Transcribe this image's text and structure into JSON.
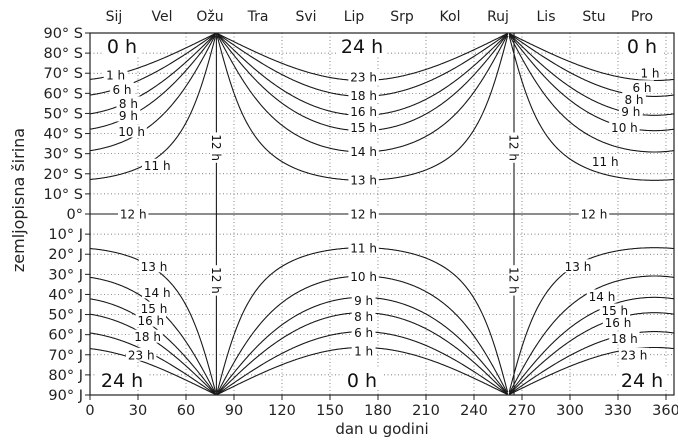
{
  "chart_data": {
    "type": "line",
    "xlabel": "dan u godini",
    "ylabel": "zemljopisna širina",
    "xlim": [
      0,
      365
    ],
    "x_ticks": [
      "0",
      "30",
      "60",
      "90",
      "120",
      "150",
      "180",
      "210",
      "240",
      "270",
      "300",
      "330",
      "360"
    ],
    "x_tick_values": [
      0,
      30,
      60,
      90,
      120,
      150,
      180,
      210,
      240,
      270,
      300,
      330,
      360
    ],
    "ylim": [
      -90,
      90
    ],
    "y_ticks": [
      "90° S",
      "80° S",
      "70° S",
      "60° S",
      "50° S",
      "40° S",
      "30° S",
      "20° S",
      "10° S",
      "0°",
      "10° J",
      "20° J",
      "30° J",
      "40° J",
      "50° J",
      "60° J",
      "70° J",
      "80° J",
      "90° J"
    ],
    "y_tick_values": [
      90,
      80,
      70,
      60,
      50,
      40,
      30,
      20,
      10,
      0,
      -10,
      -20,
      -30,
      -40,
      -50,
      -60,
      -70,
      -80,
      -90
    ],
    "months": [
      "Sij",
      "Vel",
      "Ožu",
      "Tra",
      "Svi",
      "Lip",
      "Srp",
      "Kol",
      "Ruj",
      "Lis",
      "Stu",
      "Pro"
    ],
    "month_centers": [
      15,
      45,
      75,
      105,
      135,
      165,
      195,
      225,
      255,
      285,
      315,
      345
    ],
    "grid": true,
    "equinoxes": [
      79,
      265
    ],
    "series": [
      {
        "name": "1 h"
      },
      {
        "name": "6 h"
      },
      {
        "name": "8 h"
      },
      {
        "name": "9 h"
      },
      {
        "name": "10 h"
      },
      {
        "name": "11 h"
      },
      {
        "name": "12 h"
      },
      {
        "name": "13 h"
      },
      {
        "name": "14 h"
      },
      {
        "name": "15 h"
      },
      {
        "name": "16 h"
      },
      {
        "name": "18 h"
      },
      {
        "name": "23 h"
      }
    ],
    "region_labels": [
      {
        "text": "0 h",
        "x": 20,
        "y": 83
      },
      {
        "text": "24 h",
        "x": 170,
        "y": 83
      },
      {
        "text": "0 h",
        "x": 345,
        "y": 83
      },
      {
        "text": "24 h",
        "x": 20,
        "y": -83
      },
      {
        "text": "0 h",
        "x": 170,
        "y": -83
      },
      {
        "text": "24 h",
        "x": 345,
        "y": -83
      }
    ],
    "contour_labels": [
      {
        "text": "1 h",
        "x": 16,
        "y": 69
      },
      {
        "text": "6 h",
        "x": 20,
        "y": 62
      },
      {
        "text": "8 h",
        "x": 24,
        "y": 55
      },
      {
        "text": "9 h",
        "x": 24,
        "y": 49
      },
      {
        "text": "10 h",
        "x": 26,
        "y": 41
      },
      {
        "text": "11 h",
        "x": 42,
        "y": 24
      },
      {
        "text": "12 h",
        "x": 27,
        "y": 0
      },
      {
        "text": "13 h",
        "x": 40,
        "y": -26
      },
      {
        "text": "14 h",
        "x": 42,
        "y": -39
      },
      {
        "text": "15 h",
        "x": 40,
        "y": -47
      },
      {
        "text": "16 h",
        "x": 38,
        "y": -53
      },
      {
        "text": "18 h",
        "x": 36,
        "y": -61
      },
      {
        "text": "23 h",
        "x": 32,
        "y": -70
      },
      {
        "text": "23 h",
        "x": 171,
        "y": 68
      },
      {
        "text": "18 h",
        "x": 171,
        "y": 59
      },
      {
        "text": "16 h",
        "x": 171,
        "y": 51
      },
      {
        "text": "15 h",
        "x": 171,
        "y": 43
      },
      {
        "text": "14 h",
        "x": 171,
        "y": 31
      },
      {
        "text": "13 h",
        "x": 171,
        "y": 17
      },
      {
        "text": "12 h",
        "x": 171,
        "y": 0
      },
      {
        "text": "11 h",
        "x": 171,
        "y": -17
      },
      {
        "text": "10 h",
        "x": 171,
        "y": -31
      },
      {
        "text": "9 h",
        "x": 171,
        "y": -43
      },
      {
        "text": "8 h",
        "x": 171,
        "y": -51
      },
      {
        "text": "6 h",
        "x": 171,
        "y": -59
      },
      {
        "text": "1 h",
        "x": 171,
        "y": -68
      },
      {
        "text": "1 h",
        "x": 350,
        "y": 70
      },
      {
        "text": "6 h",
        "x": 345,
        "y": 63
      },
      {
        "text": "8 h",
        "x": 340,
        "y": 57
      },
      {
        "text": "9 h",
        "x": 338,
        "y": 51
      },
      {
        "text": "10 h",
        "x": 334,
        "y": 43
      },
      {
        "text": "11 h",
        "x": 322,
        "y": 26
      },
      {
        "text": "12 h",
        "x": 315,
        "y": 0
      },
      {
        "text": "13 h",
        "x": 305,
        "y": -26
      },
      {
        "text": "14 h",
        "x": 320,
        "y": -41
      },
      {
        "text": "15 h",
        "x": 328,
        "y": -48
      },
      {
        "text": "16 h",
        "x": 330,
        "y": -54
      },
      {
        "text": "18 h",
        "x": 334,
        "y": -62
      },
      {
        "text": "23 h",
        "x": 340,
        "y": -70
      },
      {
        "text": "12 h",
        "x": 79,
        "y": 33
      },
      {
        "text": "12 h",
        "x": 79,
        "y": -33
      },
      {
        "text": "12 h",
        "x": 265,
        "y": 33
      },
      {
        "text": "12 h",
        "x": 265,
        "y": -33
      }
    ]
  }
}
